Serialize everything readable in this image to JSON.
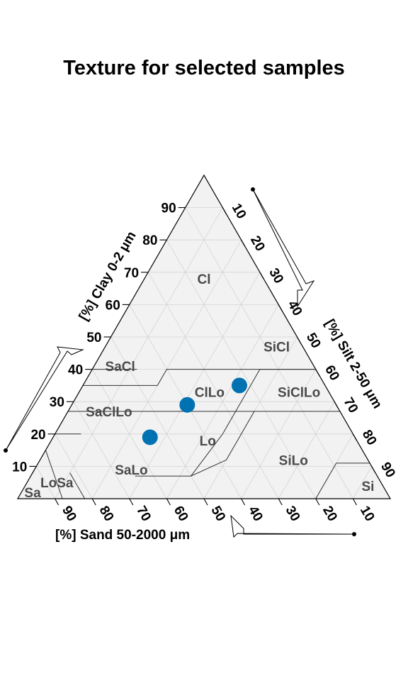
{
  "title": "Texture for selected samples",
  "chart_data": {
    "type": "ternary",
    "title": "Texture for selected samples",
    "axes": {
      "clay": {
        "label": "[%] Clay 0-2 μm",
        "ticks": [
          10,
          20,
          30,
          40,
          50,
          60,
          70,
          80,
          90
        ]
      },
      "silt": {
        "label": "[%] Silt 2-50 μm",
        "ticks": [
          10,
          20,
          30,
          40,
          50,
          60,
          70,
          80,
          90
        ]
      },
      "sand": {
        "label": "[%] Sand 50-2000 μm",
        "ticks": [
          90,
          80,
          70,
          60,
          50,
          40,
          30,
          20,
          10
        ]
      }
    },
    "grid": true,
    "texture_classes": [
      {
        "name": "Cl",
        "clay": 68,
        "silt": 16
      },
      {
        "name": "SiCl",
        "clay": 47,
        "silt": 46
      },
      {
        "name": "SaCl",
        "clay": 41,
        "silt": 7
      },
      {
        "name": "ClLo",
        "clay": 33,
        "silt": 35
      },
      {
        "name": "SiClLo",
        "clay": 33,
        "silt": 59
      },
      {
        "name": "SaClLo",
        "clay": 27,
        "silt": 11
      },
      {
        "name": "Lo",
        "clay": 18,
        "silt": 42
      },
      {
        "name": "SiLo",
        "clay": 12,
        "silt": 68
      },
      {
        "name": "SaLo",
        "clay": 9,
        "silt": 26
      },
      {
        "name": "LoSa",
        "clay": 5,
        "silt": 8
      },
      {
        "name": "Sa",
        "clay": 2,
        "silt": 3
      },
      {
        "name": "Si",
        "clay": 4,
        "silt": 92
      }
    ],
    "points": [
      {
        "clay": 19,
        "silt": 26,
        "sand": 55
      },
      {
        "clay": 29,
        "silt": 31,
        "sand": 40
      },
      {
        "clay": 35,
        "silt": 42,
        "sand": 23
      }
    ],
    "point_color": "#0072b2"
  }
}
